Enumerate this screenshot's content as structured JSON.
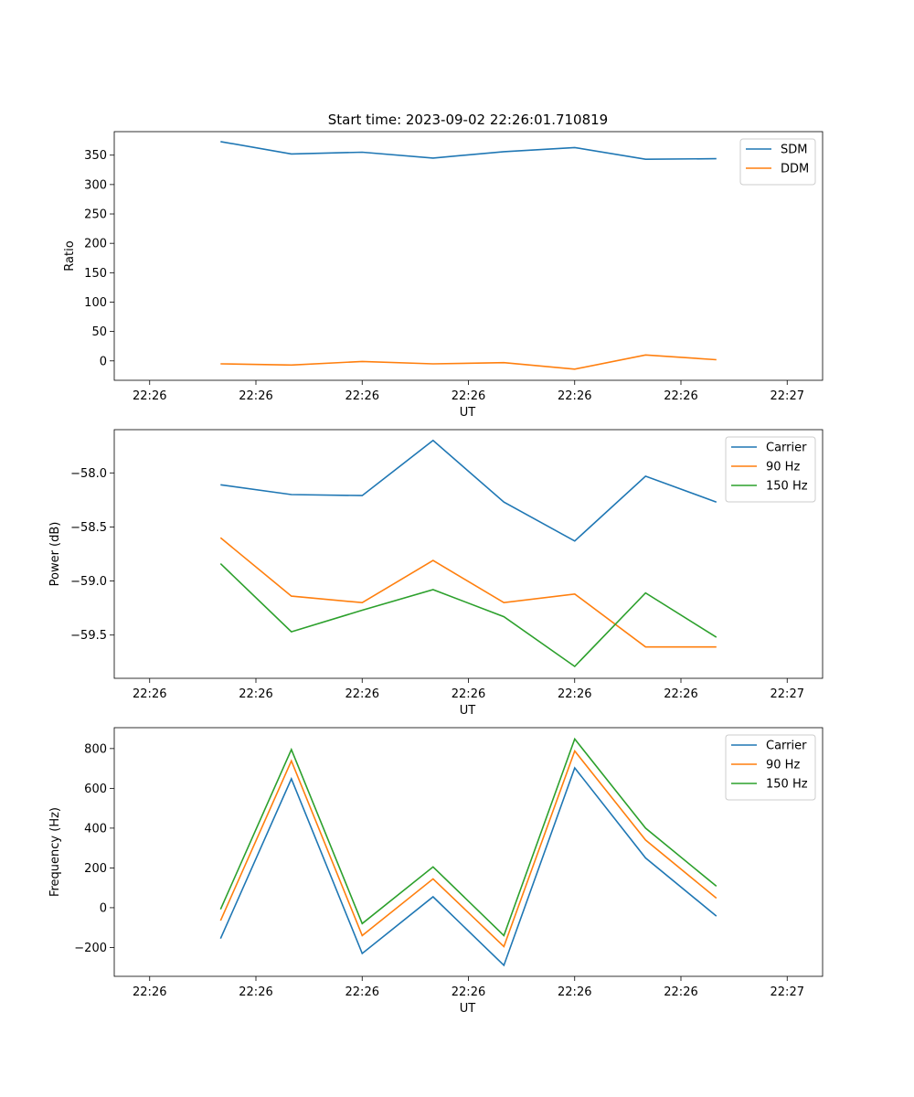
{
  "figure": {
    "title": "Start time: 2023-09-02 22:26:01.710819"
  },
  "chart_data": [
    {
      "type": "line",
      "xlabel": "UT",
      "ylabel": "Ratio",
      "x_tick_labels": [
        "22:26",
        "22:26",
        "22:26",
        "22:26",
        "22:26",
        "22:26",
        "22:27"
      ],
      "y_ticks": [
        0,
        50,
        100,
        150,
        200,
        250,
        300,
        350
      ],
      "ylim": [
        -33,
        390
      ],
      "xlim": [
        -0.5,
        9.5
      ],
      "x": [
        1,
        2,
        3,
        4,
        5,
        6,
        7,
        8
      ],
      "legend_position": "top-right",
      "series": [
        {
          "name": "SDM",
          "color": "#1f77b4",
          "values": [
            373,
            352,
            355,
            345,
            356,
            363,
            343,
            344
          ]
        },
        {
          "name": "DDM",
          "color": "#ff7f0e",
          "values": [
            -5,
            -7,
            -1,
            -5,
            -3,
            -14,
            10,
            2
          ]
        }
      ]
    },
    {
      "type": "line",
      "xlabel": "UT",
      "ylabel": "Power (dB)",
      "x_tick_labels": [
        "22:26",
        "22:26",
        "22:26",
        "22:26",
        "22:26",
        "22:26",
        "22:27"
      ],
      "y_ticks": [
        -58.0,
        -58.5,
        -59.0,
        -59.5
      ],
      "y_tick_labels": [
        "−58.0",
        "−58.5",
        "−59.0",
        "−59.5"
      ],
      "ylim": [
        -59.9,
        -57.6
      ],
      "xlim": [
        -0.5,
        9.5
      ],
      "x": [
        1,
        2,
        3,
        4,
        5,
        6,
        7,
        8
      ],
      "legend_position": "top-right",
      "series": [
        {
          "name": "Carrier",
          "color": "#1f77b4",
          "values": [
            -58.11,
            -58.2,
            -58.21,
            -57.7,
            -58.27,
            -58.63,
            -58.03,
            -58.27
          ]
        },
        {
          "name": "90 Hz",
          "color": "#ff7f0e",
          "values": [
            -58.6,
            -59.14,
            -59.2,
            -58.81,
            -59.2,
            -59.12,
            -59.61,
            -59.61
          ]
        },
        {
          "name": "150 Hz",
          "color": "#2ca02c",
          "values": [
            -58.84,
            -59.47,
            -59.27,
            -59.08,
            -59.33,
            -59.79,
            -59.11,
            -59.52
          ]
        }
      ]
    },
    {
      "type": "line",
      "xlabel": "UT",
      "ylabel": "Frequency (Hz)",
      "x_tick_labels": [
        "22:26",
        "22:26",
        "22:26",
        "22:26",
        "22:26",
        "22:26",
        "22:27"
      ],
      "y_ticks": [
        -200,
        0,
        200,
        400,
        600,
        800
      ],
      "y_tick_labels": [
        "−200",
        "0",
        "200",
        "400",
        "600",
        "800"
      ],
      "ylim": [
        -345,
        905
      ],
      "xlim": [
        -0.5,
        9.5
      ],
      "x": [
        1,
        2,
        3,
        4,
        5,
        6,
        7,
        8
      ],
      "legend_position": "top-right",
      "series": [
        {
          "name": "Carrier",
          "color": "#1f77b4",
          "values": [
            -155,
            648,
            -230,
            55,
            -290,
            703,
            250,
            -42
          ]
        },
        {
          "name": "90 Hz",
          "color": "#ff7f0e",
          "values": [
            -65,
            738,
            -140,
            145,
            -195,
            788,
            340,
            48
          ]
        },
        {
          "name": "150 Hz",
          "color": "#2ca02c",
          "values": [
            -8,
            795,
            -80,
            205,
            -140,
            848,
            400,
            108
          ]
        }
      ]
    }
  ]
}
